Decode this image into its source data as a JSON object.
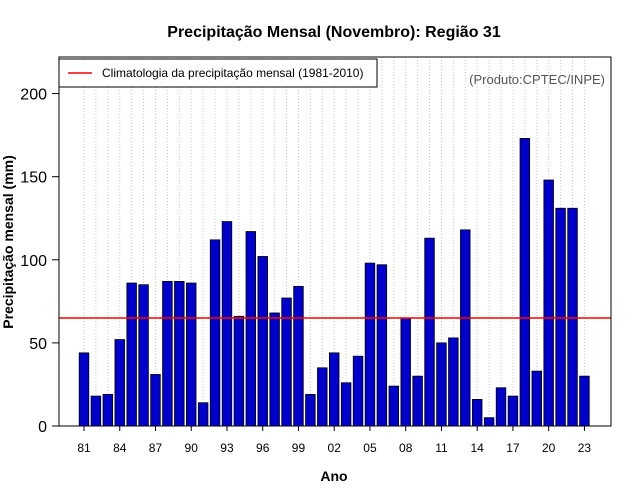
{
  "chart_data": {
    "type": "bar",
    "title": "Precipitação Mensal (Novembro): Região 31",
    "xlabel": "Ano",
    "ylabel": "Precipitação mensal (mm)",
    "credit": "(Produto:CPTEC/INPE)",
    "ylim": [
      0,
      222
    ],
    "yticks": [
      0,
      50,
      100,
      150,
      200
    ],
    "categories": [
      "81",
      "82",
      "83",
      "84",
      "85",
      "86",
      "87",
      "88",
      "89",
      "90",
      "91",
      "92",
      "93",
      "94",
      "95",
      "96",
      "97",
      "98",
      "99",
      "00",
      "01",
      "02",
      "03",
      "04",
      "05",
      "06",
      "07",
      "08",
      "09",
      "10",
      "11",
      "12",
      "13",
      "14",
      "15",
      "16",
      "17",
      "18",
      "19",
      "20",
      "21",
      "22",
      "23"
    ],
    "xtick_labels": [
      "81",
      "84",
      "87",
      "90",
      "93",
      "96",
      "99",
      "02",
      "05",
      "08",
      "11",
      "14",
      "17",
      "20",
      "23"
    ],
    "values": [
      44,
      18,
      19,
      52,
      86,
      85,
      31,
      87,
      87,
      86,
      14,
      112,
      123,
      66,
      117,
      102,
      68,
      77,
      84,
      19,
      35,
      44,
      26,
      42,
      98,
      97,
      24,
      65,
      30,
      113,
      50,
      53,
      118,
      16,
      5,
      23,
      18,
      173,
      33,
      148,
      131,
      131,
      30
    ],
    "climatology": {
      "label": "Climatologia da precipitação mensal (1981-2010)",
      "value": 65,
      "color": "#ff0000"
    },
    "bar_color": "#0000cd",
    "grid": true,
    "legend_position": "top-left"
  }
}
